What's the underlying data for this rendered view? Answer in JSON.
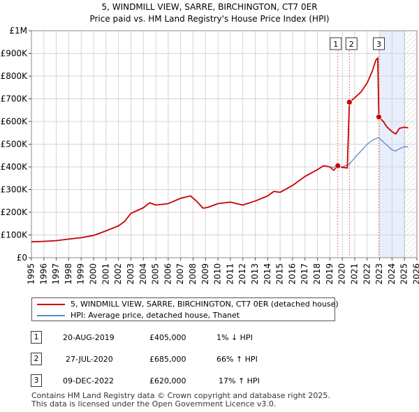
{
  "chart_data": {
    "type": "line",
    "title": "5, WINDMILL VIEW, SARRE, BIRCHINGTON, CT7 0ER",
    "subtitle": "Price paid vs. HM Land Registry's House Price Index (HPI)",
    "xlim": [
      1995,
      2026
    ],
    "ylim": [
      0,
      1000000
    ],
    "x_ticks": [
      1995,
      1996,
      1997,
      1998,
      1999,
      2000,
      2001,
      2002,
      2003,
      2004,
      2005,
      2006,
      2007,
      2008,
      2009,
      2010,
      2011,
      2012,
      2013,
      2014,
      2015,
      2016,
      2017,
      2018,
      2019,
      2020,
      2021,
      2022,
      2023,
      2024,
      2025,
      2026
    ],
    "x_tick_labels": [
      "1995",
      "1996",
      "1997",
      "1998",
      "1999",
      "2000",
      "2001",
      "2002",
      "2003",
      "2004",
      "2005",
      "2006",
      "2007",
      "2008",
      "2009",
      "2010",
      "2011",
      "2012",
      "2013",
      "2014",
      "2015",
      "2016",
      "2017",
      "2018",
      "2019",
      "2020",
      "2021",
      "2022",
      "2023",
      "2024",
      "2025",
      "2026"
    ],
    "y_ticks": [
      0,
      100000,
      200000,
      300000,
      400000,
      500000,
      600000,
      700000,
      800000,
      900000,
      1000000
    ],
    "y_tick_labels": [
      "£0",
      "£100K",
      "£200K",
      "£300K",
      "£400K",
      "£500K",
      "£600K",
      "£700K",
      "£800K",
      "£900K",
      "£1M"
    ],
    "grid": true,
    "hatch_from": 2025.0,
    "shade_span": [
      2023.0,
      2025.0
    ],
    "series": [
      {
        "name": "5, WINDMILL VIEW, SARRE, BIRCHINGTON, CT7 0ER (detached house)",
        "color": "#cc0000",
        "x": [
          1995.0,
          1996.0,
          1997.0,
          1998.0,
          1999.0,
          2000.0,
          2001.0,
          2002.0,
          2002.5,
          2003.0,
          2004.0,
          2004.5,
          2005.0,
          2006.0,
          2007.0,
          2007.8,
          2008.3,
          2008.8,
          2009.2,
          2010.0,
          2011.0,
          2011.5,
          2012.0,
          2013.0,
          2014.0,
          2014.5,
          2015.0,
          2016.0,
          2017.0,
          2018.0,
          2018.5,
          2019.0,
          2019.3,
          2019.64,
          2020.0,
          2020.4,
          2020.57,
          2020.9,
          2021.5,
          2022.0,
          2022.4,
          2022.7,
          2022.85,
          2022.94,
          2023.3,
          2023.6,
          2024.0,
          2024.3,
          2024.6,
          2025.0,
          2025.3
        ],
        "y": [
          70000,
          72000,
          75000,
          82000,
          88000,
          98000,
          118000,
          140000,
          160000,
          195000,
          220000,
          242000,
          232000,
          238000,
          262000,
          272000,
          248000,
          218000,
          222000,
          238000,
          245000,
          238000,
          232000,
          250000,
          272000,
          292000,
          288000,
          318000,
          358000,
          388000,
          405000,
          400000,
          385000,
          405000,
          398000,
          395000,
          685000,
          700000,
          730000,
          770000,
          820000,
          870000,
          880000,
          620000,
          600000,
          575000,
          555000,
          545000,
          570000,
          575000,
          572000
        ]
      },
      {
        "name": "HPI: Average price, detached house, Thanet",
        "color": "#5b8ac9",
        "x": [
          1995.0,
          1996.0,
          1997.0,
          1998.0,
          1999.0,
          2000.0,
          2001.0,
          2002.0,
          2002.5,
          2003.0,
          2004.0,
          2004.5,
          2005.0,
          2006.0,
          2007.0,
          2007.8,
          2008.3,
          2008.8,
          2009.2,
          2010.0,
          2011.0,
          2011.5,
          2012.0,
          2013.0,
          2014.0,
          2014.5,
          2015.0,
          2016.0,
          2017.0,
          2018.0,
          2018.5,
          2019.0,
          2019.64,
          2020.0,
          2020.57,
          2021.0,
          2021.5,
          2022.0,
          2022.5,
          2022.94,
          2023.3,
          2023.6,
          2024.0,
          2024.3,
          2024.6,
          2025.0,
          2025.3
        ],
        "y": [
          70000,
          72000,
          75000,
          82000,
          88000,
          98000,
          118000,
          140000,
          160000,
          195000,
          220000,
          242000,
          232000,
          238000,
          262000,
          272000,
          248000,
          218000,
          222000,
          238000,
          245000,
          238000,
          232000,
          250000,
          272000,
          292000,
          288000,
          318000,
          358000,
          388000,
          405000,
          400000,
          398000,
          400000,
          412000,
          440000,
          470000,
          500000,
          520000,
          530000,
          510000,
          495000,
          475000,
          470000,
          480000,
          490000,
          488000
        ]
      }
    ],
    "markers": [
      {
        "label": "1",
        "x": 2019.64,
        "y": 405000
      },
      {
        "label": "2",
        "x": 2020.57,
        "y": 685000
      },
      {
        "label": "3",
        "x": 2022.94,
        "y": 620000
      }
    ]
  },
  "legend": {
    "property_label": "5, WINDMILL VIEW, SARRE, BIRCHINGTON, CT7 0ER (detached house)",
    "hpi_label": "HPI: Average price, detached house, Thanet",
    "property_color": "#cc0000",
    "hpi_color": "#5b8ac9"
  },
  "transactions": [
    {
      "num": "1",
      "date": "20-AUG-2019",
      "price": "£405,000",
      "hpi": "1% ↓ HPI"
    },
    {
      "num": "2",
      "date": "27-JUL-2020",
      "price": "£685,000",
      "hpi": "66% ↑ HPI"
    },
    {
      "num": "3",
      "date": "09-DEC-2022",
      "price": "£620,000",
      "hpi": "17% ↑ HPI"
    }
  ],
  "footer": {
    "line1": "Contains HM Land Registry data © Crown copyright and database right 2025.",
    "line2": "This data is licensed under the Open Government Licence v3.0."
  }
}
